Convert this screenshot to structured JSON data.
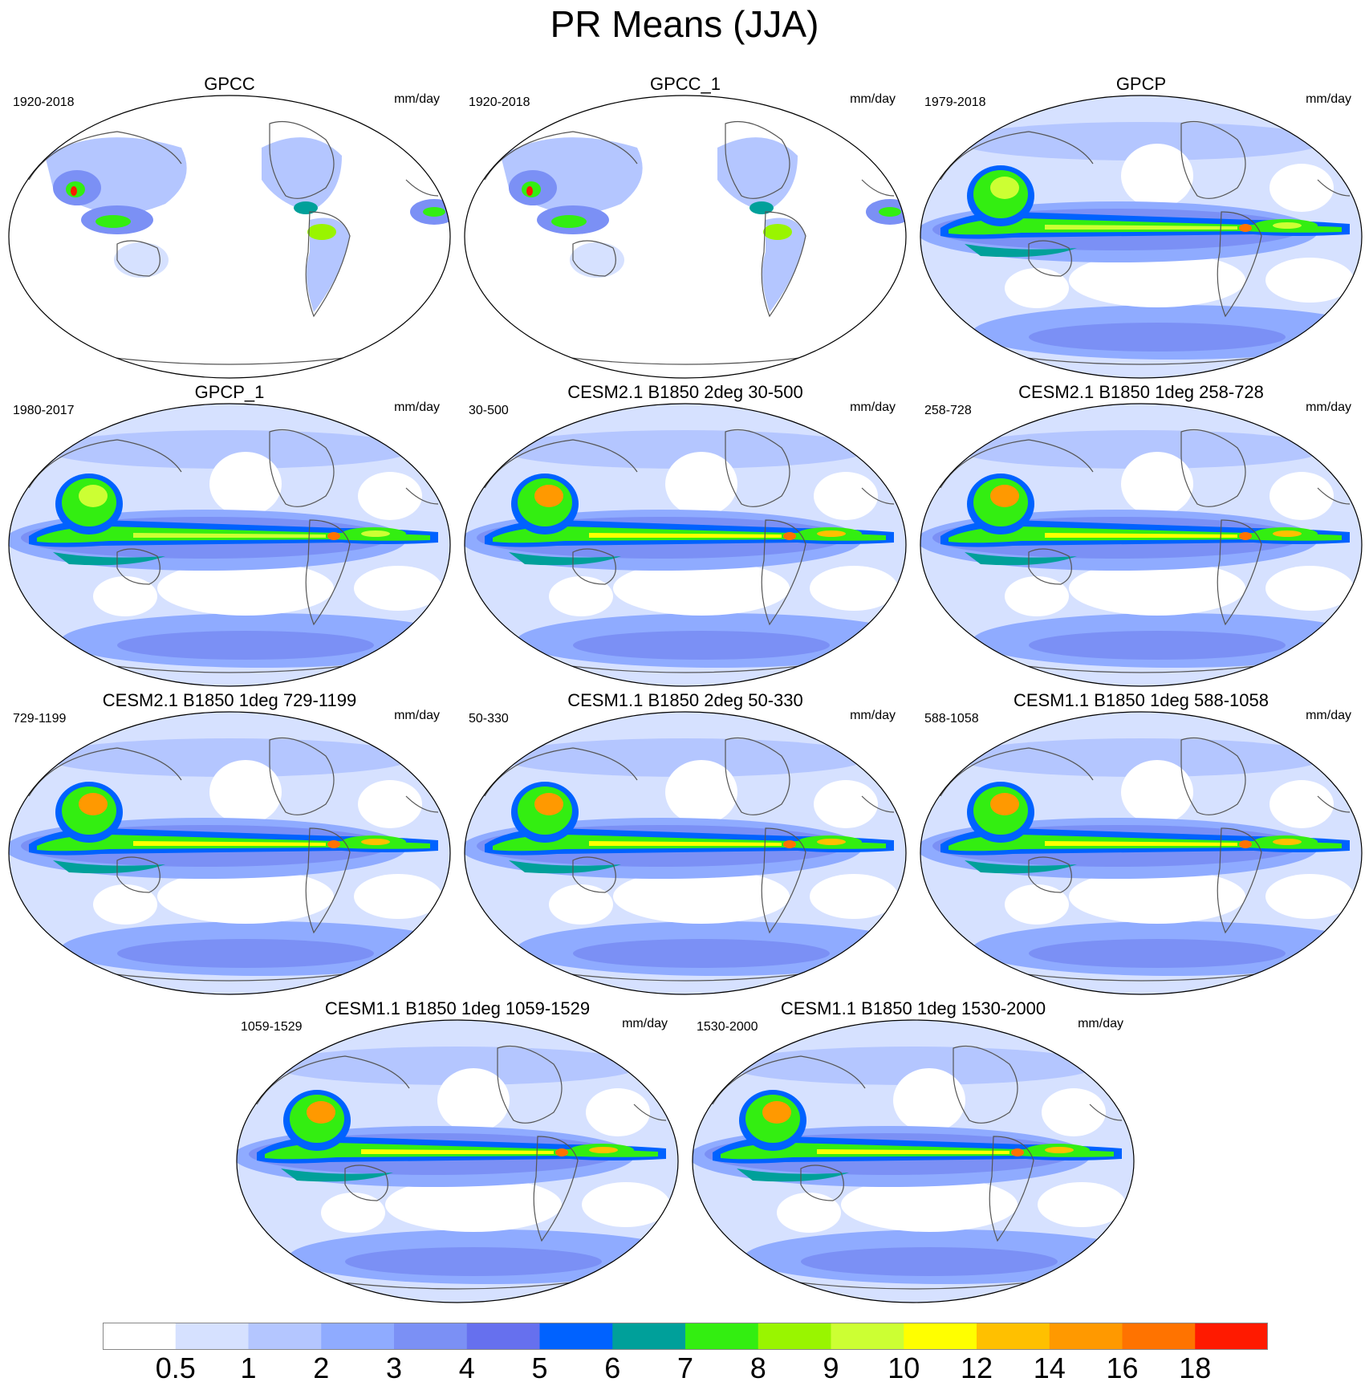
{
  "title": "PR Means (JJA)",
  "panels": [
    {
      "title": "GPCC",
      "years": "1920-2018",
      "units": "mm/day",
      "kind": "land"
    },
    {
      "title": "GPCC_1",
      "years": "1920-2018",
      "units": "mm/day",
      "kind": "land"
    },
    {
      "title": "GPCP",
      "years": "1979-2018",
      "units": "mm/day",
      "kind": "obs"
    },
    {
      "title": "GPCP_1",
      "years": "1980-2017",
      "units": "mm/day",
      "kind": "obs"
    },
    {
      "title": "CESM2.1 B1850 2deg 30-500",
      "years": "30-500",
      "units": "mm/day",
      "kind": "model"
    },
    {
      "title": "CESM2.1 B1850 1deg 258-728",
      "years": "258-728",
      "units": "mm/day",
      "kind": "model"
    },
    {
      "title": "CESM2.1 B1850 1deg 729-1199",
      "years": "729-1199",
      "units": "mm/day",
      "kind": "model"
    },
    {
      "title": "CESM1.1 B1850 2deg 50-330",
      "years": "50-330",
      "units": "mm/day",
      "kind": "model"
    },
    {
      "title": "CESM1.1 B1850 1deg 588-1058",
      "years": "588-1058",
      "units": "mm/day",
      "kind": "model"
    },
    {
      "title": "CESM1.1 B1850 1deg 1059-1529",
      "years": "1059-1529",
      "units": "mm/day",
      "kind": "model"
    },
    {
      "title": "CESM1.1 B1850 1deg 1530-2000",
      "years": "1530-2000",
      "units": "mm/day",
      "kind": "model"
    }
  ],
  "colorbar": {
    "labels": [
      "0.5",
      "1",
      "2",
      "3",
      "4",
      "5",
      "6",
      "7",
      "8",
      "9",
      "10",
      "12",
      "14",
      "16",
      "18"
    ],
    "colors": [
      "#ffffff",
      "#d6e1ff",
      "#b4c6ff",
      "#8fabff",
      "#7b90f5",
      "#6670ee",
      "#0062ff",
      "#00a09a",
      "#33ee11",
      "#99f500",
      "#ccff33",
      "#ffff00",
      "#ffc000",
      "#ff9900",
      "#ff7300",
      "#ff1a00"
    ]
  }
}
